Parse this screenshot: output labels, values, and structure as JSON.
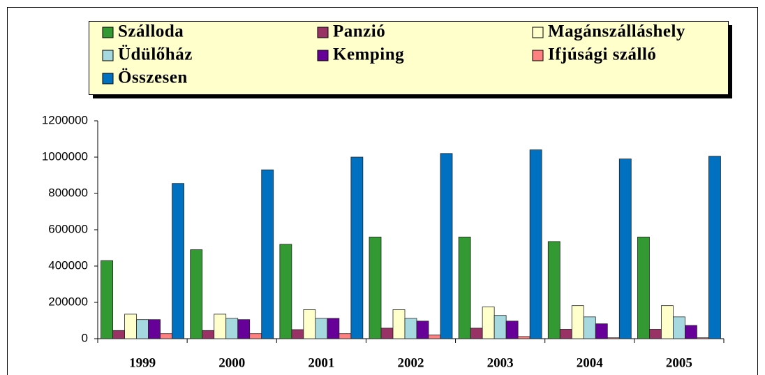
{
  "chart_data": {
    "type": "bar",
    "categories": [
      "1999",
      "2000",
      "2001",
      "2002",
      "2003",
      "2004",
      "2005"
    ],
    "series": [
      {
        "name": "Szálloda",
        "color": "#339933",
        "values": [
          430000,
          490000,
          520000,
          560000,
          560000,
          535000,
          560000
        ]
      },
      {
        "name": "Panzió",
        "color": "#993366",
        "values": [
          45000,
          45000,
          50000,
          58000,
          58000,
          52000,
          52000
        ]
      },
      {
        "name": "Magánszálláshely",
        "color": "#ffffcc",
        "values": [
          135000,
          135000,
          160000,
          160000,
          175000,
          182000,
          182000
        ]
      },
      {
        "name": "Üdülőház",
        "color": "#a6d8e0",
        "values": [
          105000,
          112000,
          112000,
          112000,
          128000,
          120000,
          120000
        ]
      },
      {
        "name": "Kemping",
        "color": "#660099",
        "values": [
          105000,
          105000,
          112000,
          97000,
          97000,
          82000,
          73000
        ]
      },
      {
        "name": "Ifjúsági szálló",
        "color": "#ff8080",
        "values": [
          28000,
          28000,
          28000,
          20000,
          12000,
          5000,
          5000
        ]
      },
      {
        "name": "Összesen",
        "color": "#0070c0",
        "values": [
          855000,
          930000,
          1000000,
          1020000,
          1040000,
          990000,
          1005000
        ]
      }
    ],
    "ylim": [
      0,
      1200000
    ],
    "yticks": [
      0,
      200000,
      400000,
      600000,
      800000,
      1000000,
      1200000
    ],
    "legend": "top"
  }
}
